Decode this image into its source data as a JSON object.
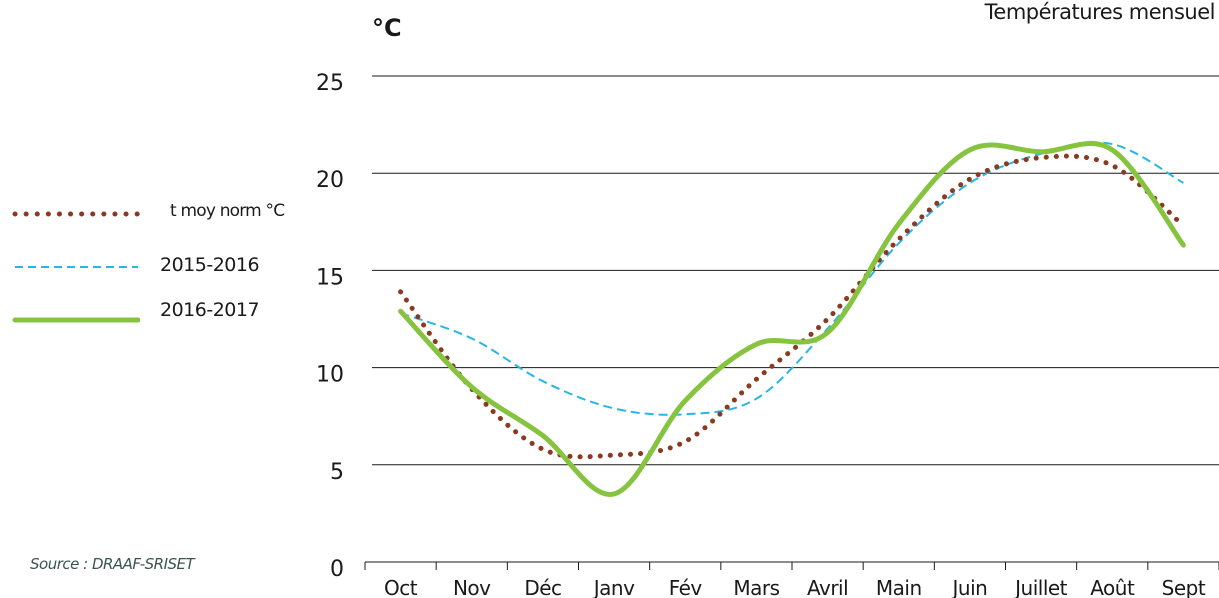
{
  "chart_data": {
    "type": "line",
    "title": "Températures mensuel",
    "ylabel": "°C",
    "xlabel": "",
    "ylim": [
      0,
      25
    ],
    "yticks": [
      0,
      5,
      10,
      15,
      20,
      25
    ],
    "grid": true,
    "legend_position": "left",
    "categories": [
      "Oct",
      "Nov",
      "Déc",
      "Janv",
      "Fév",
      "Mars",
      "Avril",
      "Main",
      "Juin",
      "Juillet",
      "Août",
      "Sept"
    ],
    "series": [
      {
        "name": "t moy norm °C",
        "color": "#8b3a22",
        "style": "dotted",
        "values": [
          13.9,
          8.9,
          5.8,
          5.5,
          6.2,
          9.4,
          12.5,
          16.6,
          19.7,
          20.8,
          20.4,
          17.3
        ]
      },
      {
        "name": "2015-2016",
        "color": "#29b6e6",
        "style": "dashed",
        "values": [
          12.8,
          11.5,
          9.3,
          7.9,
          7.6,
          8.4,
          12.0,
          16.4,
          19.5,
          21.0,
          21.5,
          19.5
        ]
      },
      {
        "name": "2016-2017",
        "color": "#86c440",
        "style": "solid",
        "values": [
          12.9,
          9.0,
          6.5,
          3.5,
          8.3,
          11.2,
          11.8,
          17.4,
          21.2,
          21.1,
          21.2,
          16.3
        ]
      }
    ]
  },
  "source": "Source : DRAAF-SRISET"
}
